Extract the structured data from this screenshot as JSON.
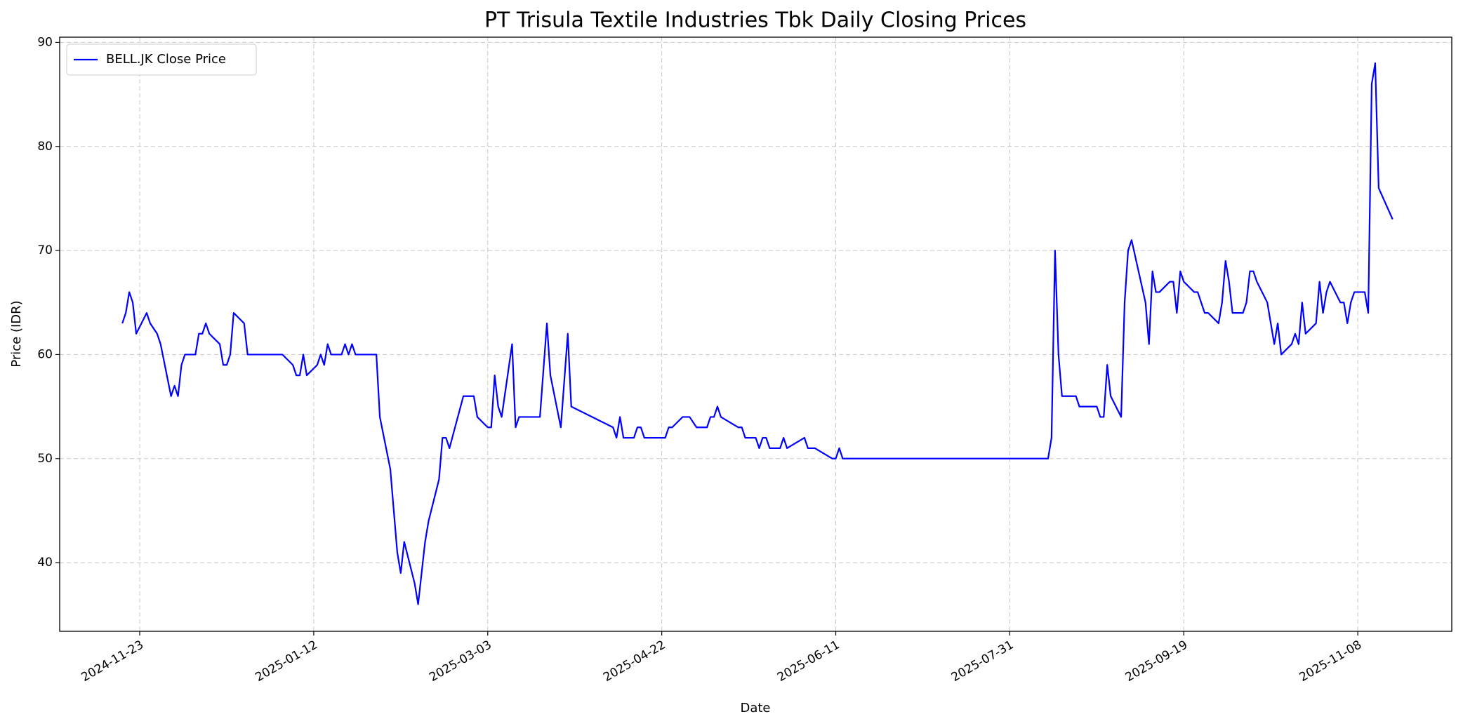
{
  "chart_data": {
    "type": "line",
    "title": "PT Trisula Textile Industries Tbk Daily Closing Prices",
    "xlabel": "Date",
    "ylabel": "Price (IDR)",
    "x": [
      "2024-11-18",
      "2024-11-19",
      "2024-11-20",
      "2024-11-21",
      "2024-11-22",
      "2024-11-25",
      "2024-11-26",
      "2024-11-28",
      "2024-11-29",
      "2024-12-02",
      "2024-12-03",
      "2024-12-04",
      "2024-12-05",
      "2024-12-06",
      "2024-12-09",
      "2024-12-10",
      "2024-12-11",
      "2024-12-12",
      "2024-12-13",
      "2024-12-16",
      "2024-12-17",
      "2024-12-18",
      "2024-12-19",
      "2024-12-20",
      "2024-12-23",
      "2024-12-24",
      "2025-01-03",
      "2025-01-06",
      "2025-01-07",
      "2025-01-08",
      "2025-01-09",
      "2025-01-10",
      "2025-01-13",
      "2025-01-14",
      "2025-01-15",
      "2025-01-16",
      "2025-01-17",
      "2025-01-20",
      "2025-01-21",
      "2025-01-22",
      "2025-01-23",
      "2025-01-24",
      "2025-01-30",
      "2025-01-31",
      "2025-02-03",
      "2025-02-05",
      "2025-02-06",
      "2025-02-07",
      "2025-02-10",
      "2025-02-11",
      "2025-02-13",
      "2025-02-14",
      "2025-02-17",
      "2025-02-18",
      "2025-02-19",
      "2025-02-20",
      "2025-02-24",
      "2025-02-27",
      "2025-02-28",
      "2025-03-03",
      "2025-03-04",
      "2025-03-05",
      "2025-03-06",
      "2025-03-07",
      "2025-03-10",
      "2025-03-11",
      "2025-03-12",
      "2025-03-18",
      "2025-03-20",
      "2025-03-21",
      "2025-03-24",
      "2025-03-26",
      "2025-03-27",
      "2025-04-08",
      "2025-04-09",
      "2025-04-10",
      "2025-04-11",
      "2025-04-14",
      "2025-04-15",
      "2025-04-16",
      "2025-04-17",
      "2025-04-23",
      "2025-04-24",
      "2025-04-25",
      "2025-04-28",
      "2025-04-30",
      "2025-05-02",
      "2025-05-05",
      "2025-05-06",
      "2025-05-07",
      "2025-05-08",
      "2025-05-09",
      "2025-05-14",
      "2025-05-15",
      "2025-05-16",
      "2025-05-19",
      "2025-05-20",
      "2025-05-21",
      "2025-05-22",
      "2025-05-23",
      "2025-05-26",
      "2025-05-27",
      "2025-05-28",
      "2025-06-02",
      "2025-06-03",
      "2025-06-05",
      "2025-06-10",
      "2025-06-11",
      "2025-06-12",
      "2025-06-13",
      "2025-08-11",
      "2025-08-12",
      "2025-08-13",
      "2025-08-14",
      "2025-08-15",
      "2025-08-19",
      "2025-08-20",
      "2025-08-25",
      "2025-08-26",
      "2025-08-27",
      "2025-08-28",
      "2025-08-29",
      "2025-09-01",
      "2025-09-02",
      "2025-09-03",
      "2025-09-04",
      "2025-09-08",
      "2025-09-09",
      "2025-09-10",
      "2025-09-11",
      "2025-09-12",
      "2025-09-15",
      "2025-09-16",
      "2025-09-17",
      "2025-09-18",
      "2025-09-19",
      "2025-09-22",
      "2025-09-23",
      "2025-09-25",
      "2025-09-26",
      "2025-09-29",
      "2025-09-30",
      "2025-10-01",
      "2025-10-02",
      "2025-10-03",
      "2025-10-06",
      "2025-10-07",
      "2025-10-08",
      "2025-10-09",
      "2025-10-10",
      "2025-10-13",
      "2025-10-14",
      "2025-10-15",
      "2025-10-16",
      "2025-10-17",
      "2025-10-20",
      "2025-10-21",
      "2025-10-22",
      "2025-10-23",
      "2025-10-24",
      "2025-10-27",
      "2025-10-28",
      "2025-10-29",
      "2025-10-30",
      "2025-10-31",
      "2025-11-03",
      "2025-11-04",
      "2025-11-05",
      "2025-11-06",
      "2025-11-07",
      "2025-11-10",
      "2025-11-11",
      "2025-11-12",
      "2025-11-13",
      "2025-11-14",
      "2025-11-18"
    ],
    "series": [
      {
        "name": "BELL.JK Close Price",
        "color": "#0000ff",
        "values": [
          63,
          64,
          66,
          65,
          62,
          64,
          63,
          62,
          61,
          56,
          57,
          56,
          59,
          60,
          60,
          62,
          62,
          63,
          62,
          61,
          59,
          59,
          60,
          64,
          63,
          60,
          60,
          59,
          58,
          58,
          60,
          58,
          59,
          60,
          59,
          61,
          60,
          60,
          61,
          60,
          61,
          60,
          60,
          54,
          49,
          41,
          39,
          42,
          38,
          36,
          42,
          44,
          48,
          52,
          52,
          51,
          56,
          56,
          54,
          53,
          53,
          58,
          55,
          54,
          61,
          53,
          54,
          54,
          63,
          58,
          53,
          62,
          55,
          53,
          52,
          54,
          52,
          52,
          53,
          53,
          52,
          52,
          53,
          53,
          54,
          54,
          53,
          53,
          54,
          54,
          55,
          54,
          53,
          53,
          52,
          52,
          51,
          52,
          52,
          51,
          51,
          52,
          51,
          52,
          51,
          51,
          50,
          50,
          51,
          50,
          50,
          52,
          70,
          60,
          56,
          56,
          55,
          55,
          54,
          54,
          59,
          56,
          54,
          65,
          70,
          71,
          65,
          61,
          68,
          66,
          66,
          67,
          67,
          64,
          68,
          67,
          66,
          66,
          64,
          64,
          63,
          65,
          69,
          67,
          64,
          64,
          65,
          68,
          68,
          67,
          65,
          63,
          61,
          63,
          60,
          61,
          62,
          61,
          65,
          62,
          63,
          67,
          64,
          66,
          67,
          65,
          65,
          63,
          65,
          66,
          66,
          64,
          86,
          88,
          76,
          73
        ]
      }
    ],
    "xlim": [
      "2024-10-31",
      "2025-12-05"
    ],
    "xticks": [
      "2024-11-23",
      "2025-01-12",
      "2025-03-03",
      "2025-04-22",
      "2025-06-11",
      "2025-07-31",
      "2025-09-19",
      "2025-11-08"
    ],
    "ylim": [
      33.4,
      90.5
    ],
    "yticks": [
      40,
      50,
      60,
      70,
      80,
      90
    ],
    "grid": true,
    "legend": "upper left"
  }
}
